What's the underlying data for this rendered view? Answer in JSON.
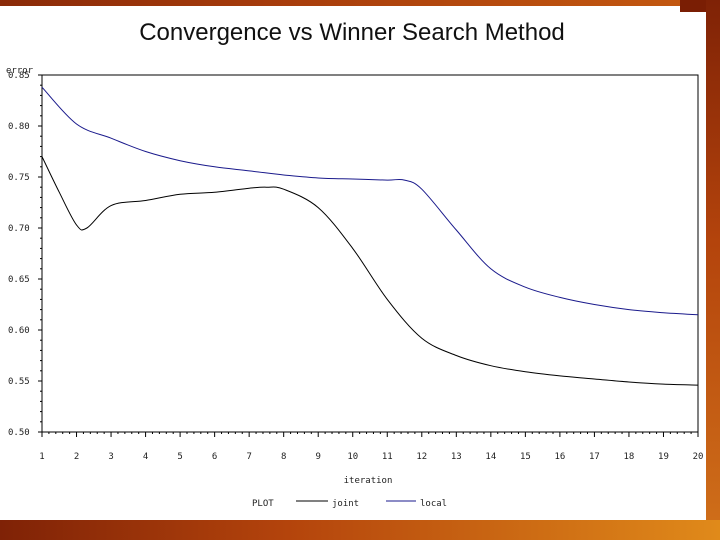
{
  "chart_data": {
    "type": "line",
    "title": "Convergence vs Winner Search Method",
    "ylabel": "error",
    "xlabel": "iteration",
    "xlim": [
      1,
      20
    ],
    "ylim": [
      0.5,
      0.85
    ],
    "x_ticks": [
      "1",
      "2",
      "3",
      "4",
      "5",
      "6",
      "7",
      "8",
      "9",
      "10",
      "11",
      "12",
      "13",
      "14",
      "15",
      "16",
      "17",
      "18",
      "19",
      "20"
    ],
    "y_ticks": [
      "0.50",
      "0.55",
      "0.60",
      "0.65",
      "0.70",
      "0.75",
      "0.80",
      "0.85"
    ],
    "legend_title": "PLOT",
    "legend_position": "bottom",
    "series": [
      {
        "name": "joint",
        "color": "#000000",
        "x": [
          1,
          1.5,
          2,
          2.3,
          3,
          4,
          5,
          6,
          7,
          7.5,
          8,
          9,
          10,
          11,
          12,
          13,
          14,
          15,
          16,
          17,
          18,
          19,
          20
        ],
        "y": [
          0.77,
          0.735,
          0.703,
          0.7,
          0.722,
          0.727,
          0.733,
          0.735,
          0.739,
          0.74,
          0.738,
          0.72,
          0.68,
          0.63,
          0.592,
          0.575,
          0.565,
          0.559,
          0.555,
          0.552,
          0.549,
          0.547,
          0.546
        ]
      },
      {
        "name": "local",
        "color": "#1a1a8c",
        "x": [
          1,
          2,
          3,
          4,
          5,
          6,
          7,
          8,
          9,
          10,
          11,
          11.5,
          12,
          13,
          14,
          15,
          16,
          17,
          18,
          19,
          20
        ],
        "y": [
          0.838,
          0.802,
          0.788,
          0.775,
          0.766,
          0.76,
          0.756,
          0.752,
          0.749,
          0.748,
          0.747,
          0.747,
          0.738,
          0.698,
          0.66,
          0.642,
          0.632,
          0.625,
          0.62,
          0.617,
          0.615
        ]
      }
    ]
  }
}
